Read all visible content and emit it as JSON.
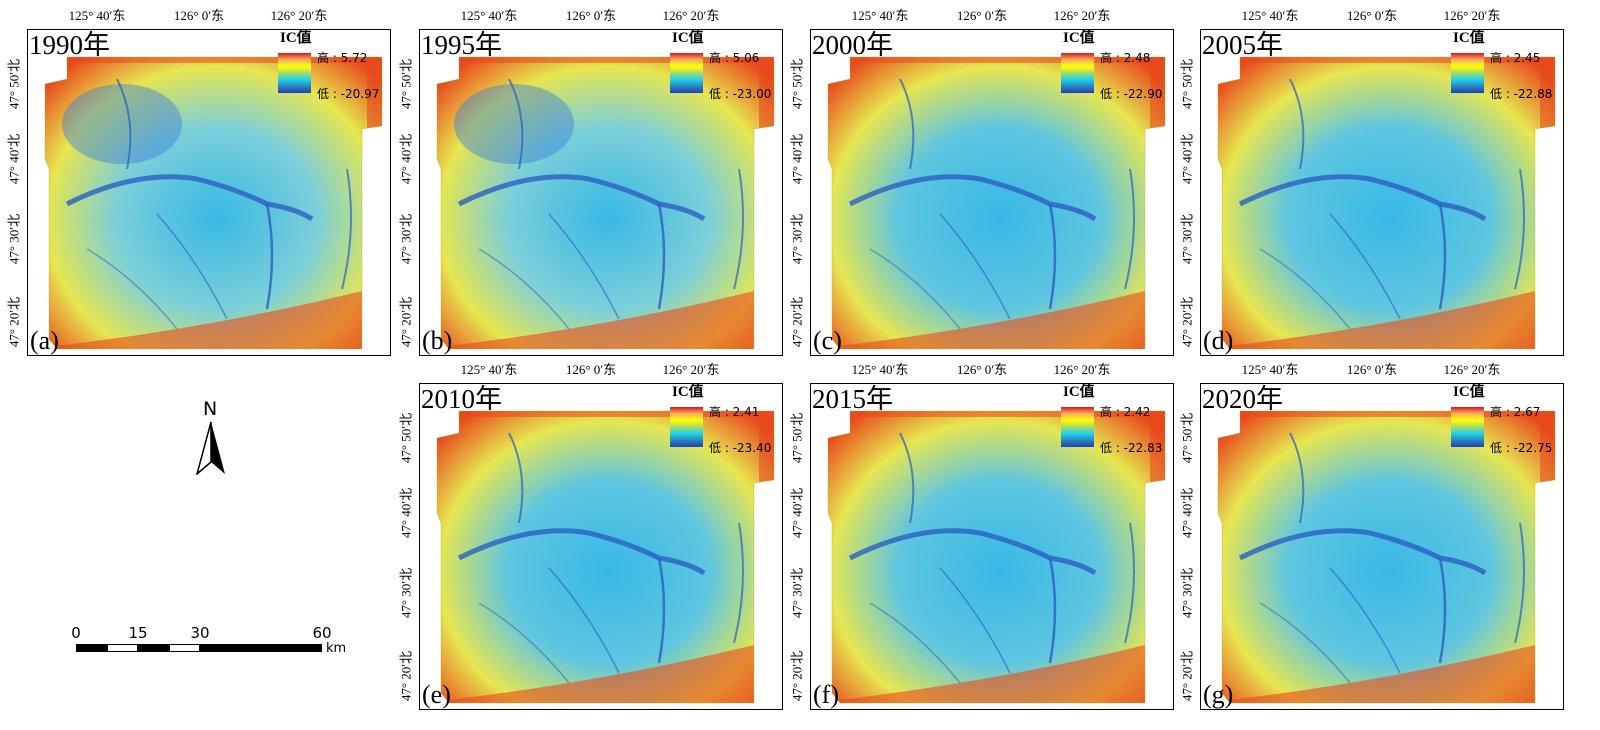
{
  "axes": {
    "top_ticks": [
      "125° 40′东",
      "126° 0′东",
      "126° 20′东"
    ],
    "left_ticks": [
      "47° 50′北",
      "47° 40′北",
      "47° 30′北",
      "47° 20′北"
    ]
  },
  "legend": {
    "title": "IC值",
    "high_prefix": "高 : ",
    "low_prefix": "低 : ",
    "ramp_colors": [
      "#d7191c",
      "#fdae61",
      "#ffff00",
      "#a6d96a",
      "#1cd3f0",
      "#2b83ba",
      "#1f3fbf"
    ]
  },
  "panels": [
    {
      "year": "1990年",
      "letter": "(a)",
      "high": "5.72",
      "low": "-20.97"
    },
    {
      "year": "1995年",
      "letter": "(b)",
      "high": "5.06",
      "low": "-23.00"
    },
    {
      "year": "2000年",
      "letter": "(c)",
      "high": "2.48",
      "low": "-22.90"
    },
    {
      "year": "2005年",
      "letter": "(d)",
      "high": "2.45",
      "low": "-22.88"
    },
    {
      "year": "2010年",
      "letter": "(e)",
      "high": "2.41",
      "low": "-23.40"
    },
    {
      "year": "2015年",
      "letter": "(f)",
      "high": "2.42",
      "low": "-22.83"
    },
    {
      "year": "2020年",
      "letter": "(g)",
      "high": "2.67",
      "low": "-22.75"
    }
  ],
  "north_arrow": {
    "label": "N"
  },
  "scale_bar": {
    "labels": [
      "0",
      "15",
      "30",
      "60"
    ],
    "unit": "km"
  },
  "colors": {
    "high": "#e8491d",
    "mid": "#e6e650",
    "low": "#38b8e6",
    "channel": "#2a5fc0",
    "frame": "#000000"
  }
}
